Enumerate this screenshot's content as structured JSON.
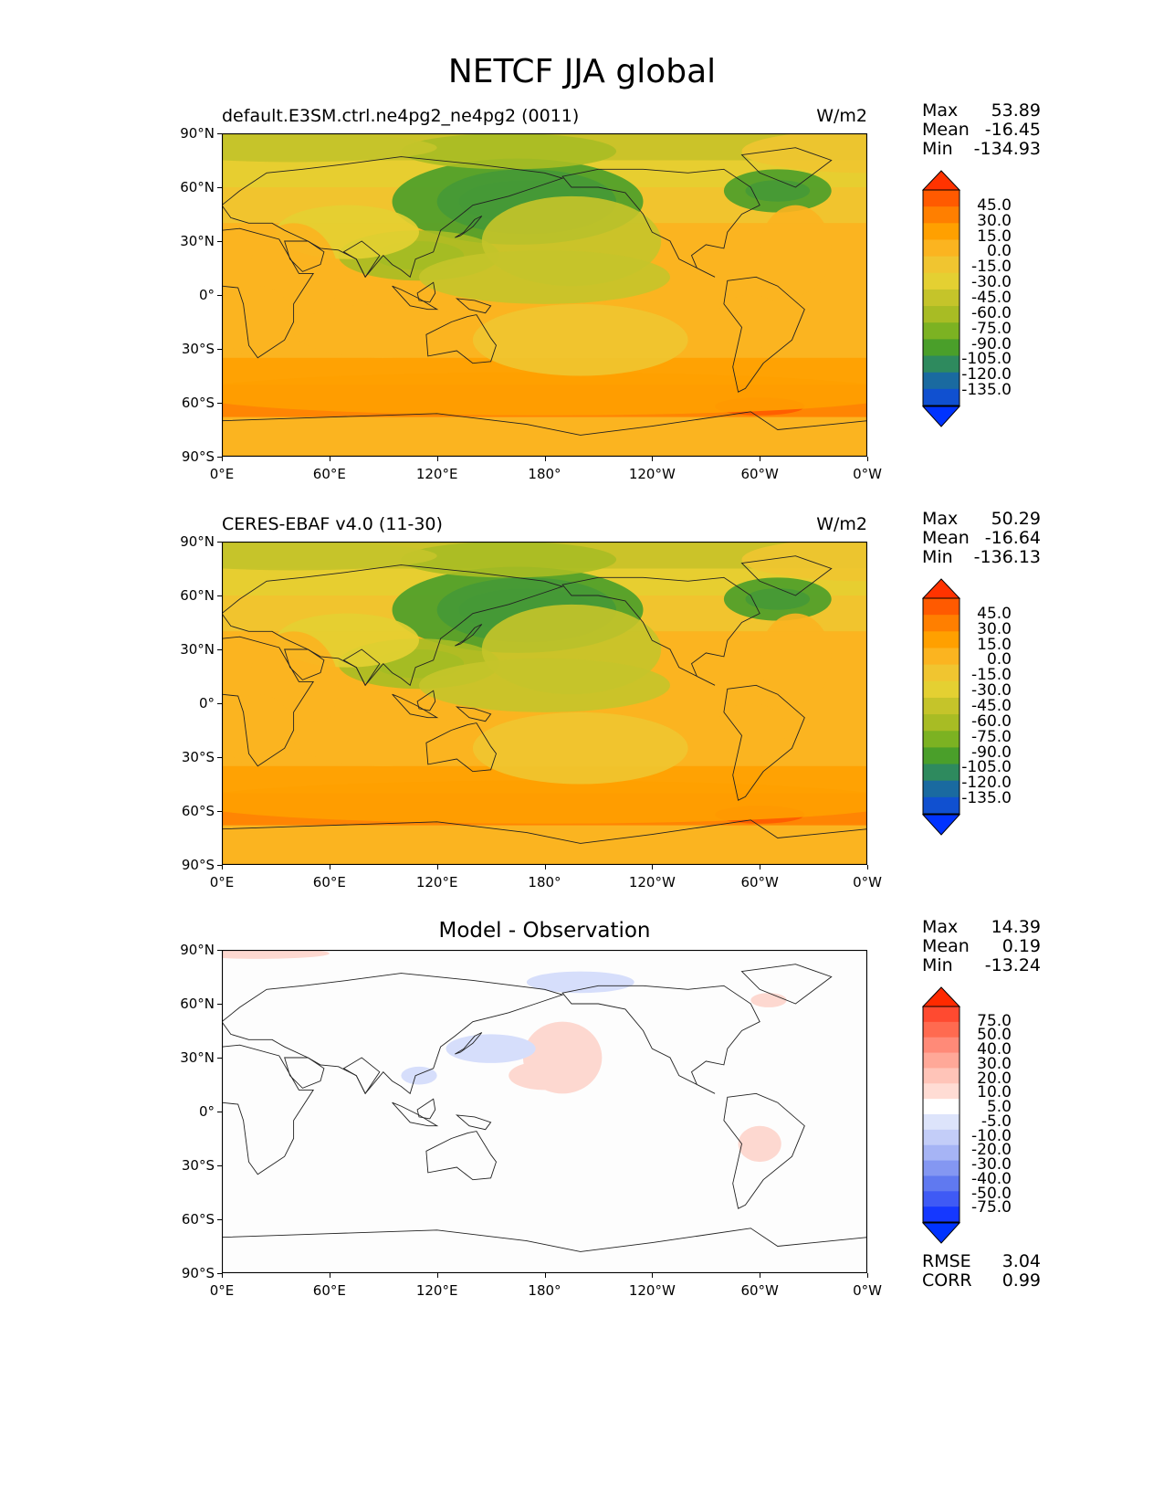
{
  "title": "NETCF JJA global",
  "lat_ticks": [
    "90°N",
    "60°N",
    "30°N",
    "0°",
    "30°S",
    "60°S",
    "90°S"
  ],
  "lon_ticks": [
    "0°E",
    "60°E",
    "120°E",
    "180°",
    "120°W",
    "60°W",
    "0°W"
  ],
  "panels": [
    {
      "left_title": "default.E3SM.ctrl.ne4pg2_ne4pg2 (0011)",
      "center_title": "",
      "units": "W/m2",
      "stats": [
        [
          "Max",
          "53.89"
        ],
        [
          "Mean",
          "-16.45"
        ],
        [
          "Min",
          "-134.93"
        ]
      ],
      "colorbar_labels": [
        "45.0",
        "30.0",
        "15.0",
        "0.0",
        "-15.0",
        "-30.0",
        "-45.0",
        "-60.0",
        "-75.0",
        "-90.0",
        "-105.0",
        "-120.0",
        "-135.0"
      ],
      "colorbar_colors": [
        "#ff3300",
        "#ff5a00",
        "#ff7f00",
        "#ffa000",
        "#fbb420",
        "#f0c530",
        "#e4d032",
        "#c5c42a",
        "#a8bc24",
        "#7cb222",
        "#4a9f2a",
        "#2e8a5e",
        "#1a6aa0",
        "#1050d0",
        "#0033ff"
      ]
    },
    {
      "left_title": "CERES-EBAF v4.0 (11-30)",
      "center_title": "",
      "units": "W/m2",
      "stats": [
        [
          "Max",
          "50.29"
        ],
        [
          "Mean",
          "-16.64"
        ],
        [
          "Min",
          "-136.13"
        ]
      ],
      "colorbar_labels": [
        "45.0",
        "30.0",
        "15.0",
        "0.0",
        "-15.0",
        "-30.0",
        "-45.0",
        "-60.0",
        "-75.0",
        "-90.0",
        "-105.0",
        "-120.0",
        "-135.0"
      ],
      "colorbar_colors": [
        "#ff3300",
        "#ff5a00",
        "#ff7f00",
        "#ffa000",
        "#fbb420",
        "#f0c530",
        "#e4d032",
        "#c5c42a",
        "#a8bc24",
        "#7cb222",
        "#4a9f2a",
        "#2e8a5e",
        "#1a6aa0",
        "#1050d0",
        "#0033ff"
      ]
    },
    {
      "left_title": "",
      "center_title": "Model - Observation",
      "units": "",
      "stats": [
        [
          "Max",
          "14.39"
        ],
        [
          "Mean",
          "0.19"
        ],
        [
          "Min",
          "-13.24"
        ]
      ],
      "colorbar_labels": [
        "75.0",
        "50.0",
        "40.0",
        "30.0",
        "20.0",
        "10.0",
        "5.0",
        "-5.0",
        "-10.0",
        "-20.0",
        "-30.0",
        "-40.0",
        "-50.0",
        "-75.0"
      ],
      "colorbar_colors": [
        "#ff2a00",
        "#ff4a30",
        "#ff6a50",
        "#ff8a78",
        "#ffa898",
        "#ffc4b8",
        "#ffdcd4",
        "#ffffff",
        "#dde4fb",
        "#c3cdf8",
        "#a6b4f5",
        "#8497f2",
        "#6079f0",
        "#3f5af5",
        "#1538ff",
        "#0033ff"
      ],
      "error_stats": [
        [
          "RMSE",
          "3.04"
        ],
        [
          "CORR",
          "0.99"
        ]
      ]
    }
  ]
}
